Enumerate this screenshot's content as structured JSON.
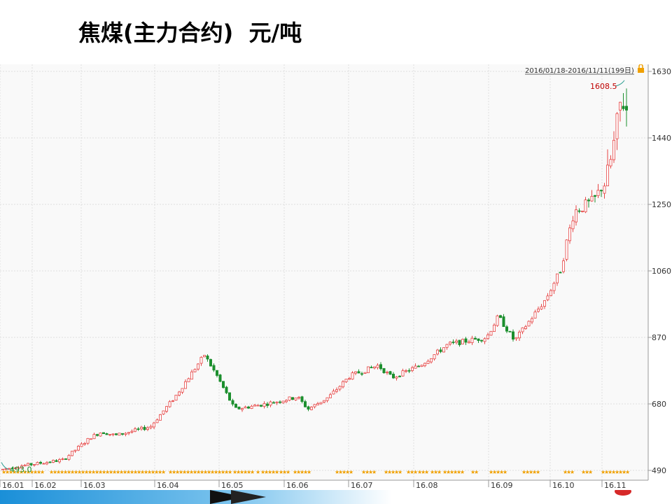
{
  "slide": {
    "title": "焦煤(主力合约)  元/吨"
  },
  "colors": {
    "up": "#e64545",
    "down": "#1c8f2e",
    "grid": "#e0e0e0",
    "star": "#f0a000",
    "panel_bg": "#f9f9f9",
    "high_label": "#c00000",
    "low_label": "#1c8f2e"
  },
  "chart_data": {
    "type": "candlestick",
    "title": "焦煤(主力合约)  元/吨",
    "date_range_label": "2016/01/18-2016/11/11(199日)",
    "x_ticks": [
      "16.01",
      "16.02",
      "16.03",
      "16.04",
      "16.05",
      "16.06",
      "16.07",
      "16.08",
      "16.09",
      "16.10",
      "16.11"
    ],
    "y_ticks": [
      490,
      680,
      870,
      1060,
      1250,
      1440,
      1630
    ],
    "ylim": [
      462,
      1650
    ],
    "grid": true,
    "annotations": [
      {
        "text": "1608.5",
        "kind": "high",
        "value": 1608.5
      },
      {
        "text": "493.0",
        "kind": "low",
        "value": 493.0
      }
    ],
    "close_path": [
      {
        "month": "16.01",
        "close": 500
      },
      {
        "month": "16.02",
        "close": 522
      },
      {
        "month": "16.03",
        "close": 590
      },
      {
        "month": "16.04",
        "close": 668
      },
      {
        "month": "16.05",
        "close": 690
      },
      {
        "month": "16.06",
        "close": 705
      },
      {
        "month": "16.07",
        "close": 770
      },
      {
        "month": "16.08",
        "close": 860
      },
      {
        "month": "16.09",
        "close": 940
      },
      {
        "month": "16.10",
        "close": 1230
      },
      {
        "month": "16.11",
        "close": 1560
      }
    ]
  }
}
